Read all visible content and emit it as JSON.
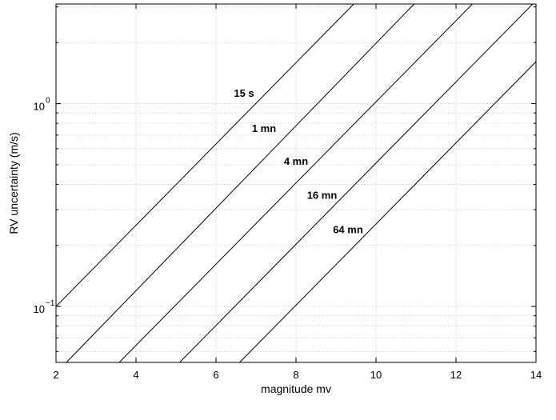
{
  "chart_data": {
    "type": "line",
    "xlabel": "magnitude mv",
    "ylabel": "RV uncertainty (m/s)",
    "xlim": [
      2,
      14
    ],
    "ylim": [
      0.053,
      3.1
    ],
    "yscale": "log",
    "grid": true,
    "xticks": [
      2,
      4,
      6,
      8,
      10,
      12,
      14
    ],
    "xtick_labels": [
      "2",
      "4",
      "6",
      "8",
      "10",
      "12",
      "14"
    ],
    "yticks": [
      0.1,
      1
    ],
    "ytick_labels": [
      {
        "base": "10",
        "exp": "−1"
      },
      {
        "base": "10",
        "exp": "0"
      }
    ],
    "series": [
      {
        "name": "15 s",
        "x": [
          2.0,
          10.92
        ],
        "y": [
          0.1,
          6.12
        ]
      },
      {
        "name": "1 mn",
        "x": [
          2.26,
          14.0
        ],
        "y": [
          0.053,
          12.9
        ]
      },
      {
        "name": "4 mn",
        "x": [
          3.58,
          14.0
        ],
        "y": [
          0.053,
          6.45
        ]
      },
      {
        "name": "16 mn",
        "x": [
          5.09,
          14.0
        ],
        "y": [
          0.053,
          3.22
        ]
      },
      {
        "name": "64 mn",
        "x": [
          6.59,
          14.0
        ],
        "y": [
          0.053,
          1.61
        ]
      }
    ],
    "annotations": [
      {
        "text": "15 s",
        "x": 6.7,
        "y": 1.08
      },
      {
        "text": "1 mn",
        "x": 7.2,
        "y": 0.725
      },
      {
        "text": "4 mn",
        "x": 8.0,
        "y": 0.5
      },
      {
        "text": "16 mn",
        "x": 8.65,
        "y": 0.34
      },
      {
        "text": "64 mn",
        "x": 9.3,
        "y": 0.23
      }
    ]
  }
}
